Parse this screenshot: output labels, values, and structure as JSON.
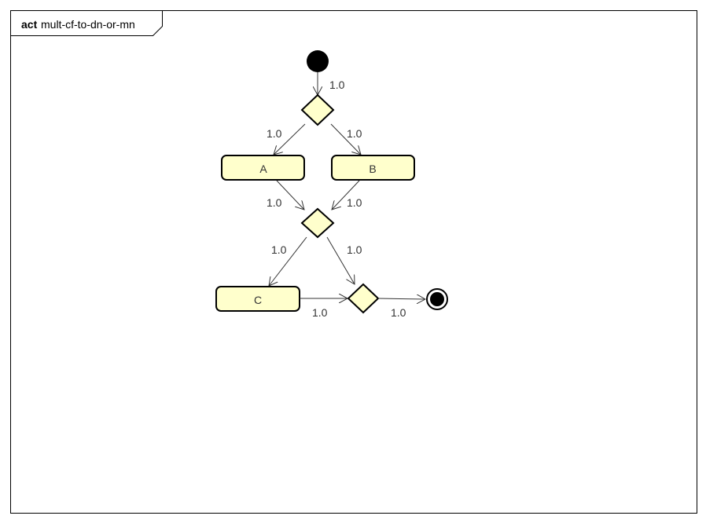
{
  "frame": {
    "keyword": "act",
    "name": "mult-cf-to-dn-or-mn"
  },
  "nodes": {
    "action_a": "A",
    "action_b": "B",
    "action_c": "C"
  },
  "edges": {
    "initial_to_decision": "1.0",
    "decision_to_a": "1.0",
    "decision_to_b": "1.0",
    "a_to_merge": "1.0",
    "b_to_merge": "1.0",
    "merge_to_c": "1.0",
    "merge_to_final_merge": "1.0",
    "c_to_final_merge": "1.0",
    "final_merge_to_end": "1.0"
  },
  "colors": {
    "node_fill": "#ffffcc",
    "stroke": "#000000",
    "edge": "#333333"
  }
}
